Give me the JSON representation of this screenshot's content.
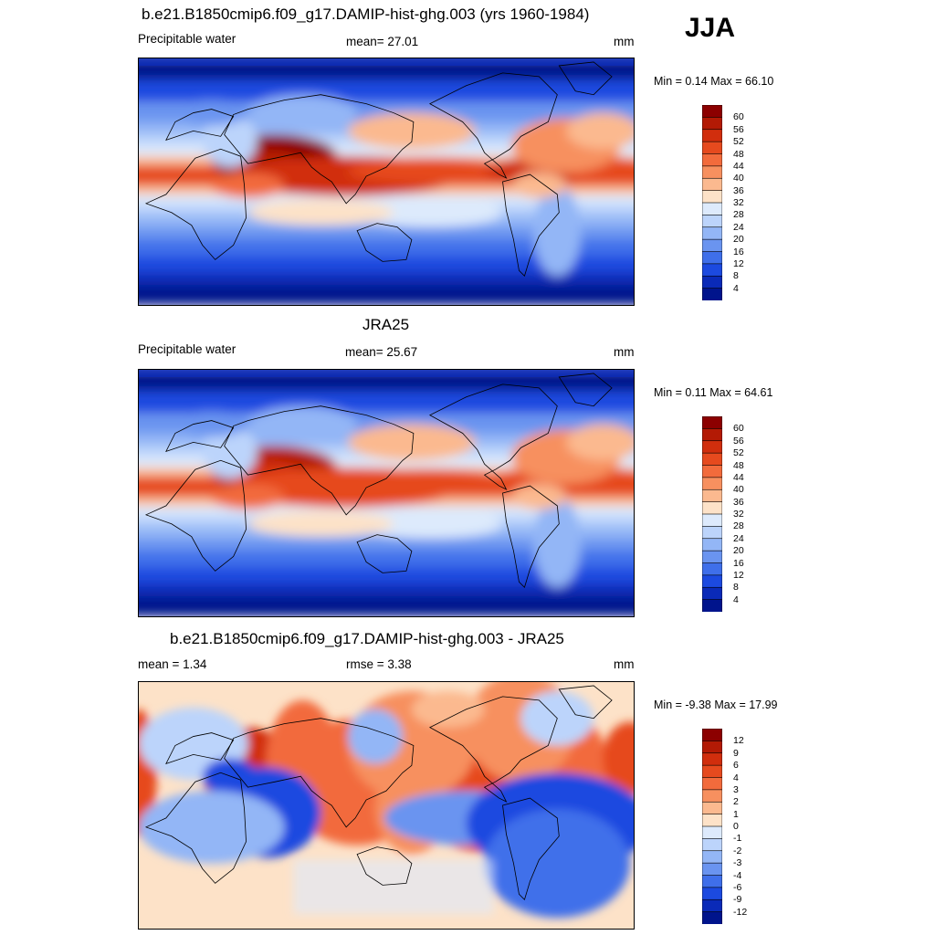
{
  "season": "JJA",
  "panels": [
    {
      "title": "b.e21.B1850cmip6.f09_g17.DAMIP-hist-ghg.003 (yrs 1960-1984)",
      "left_label": "Precipitable water",
      "center_label": "mean=  27.01",
      "units": "mm",
      "minmax": "Min =   0.14 Max =  66.10",
      "kind": "field"
    },
    {
      "title": "JRA25",
      "left_label": "Precipitable water",
      "center_label": "mean=  25.67",
      "units": "mm",
      "minmax": "Min =   0.11 Max =  64.61",
      "kind": "field"
    },
    {
      "title": "b.e21.B1850cmip6.f09_g17.DAMIP-hist-ghg.003 - JRA25",
      "left_label": "mean =   1.34",
      "center_label": "rmse =   3.38",
      "units": "mm",
      "minmax": "Min =  -9.38 Max =  17.99",
      "kind": "diff"
    }
  ],
  "colorbars": {
    "field": {
      "labels": [
        "60",
        "56",
        "52",
        "48",
        "44",
        "40",
        "36",
        "32",
        "28",
        "24",
        "20",
        "16",
        "12",
        "8",
        "4"
      ],
      "colors": [
        "#8c0000",
        "#b31a05",
        "#d12e0d",
        "#e64a1e",
        "#f26b3c",
        "#f7905f",
        "#fbb98f",
        "#fde2c8",
        "#ddeafc",
        "#bcd4fb",
        "#93b6f6",
        "#6a94f0",
        "#3f6fea",
        "#1c4ae0",
        "#0a2ab8",
        "#00148c"
      ]
    },
    "diff": {
      "labels": [
        "12",
        "9",
        "6",
        "4",
        "3",
        "2",
        "1",
        "0",
        "-1",
        "-2",
        "-3",
        "-4",
        "-6",
        "-9",
        "-12"
      ],
      "colors": [
        "#8c0000",
        "#b31a05",
        "#d12e0d",
        "#e64a1e",
        "#f26b3c",
        "#f7905f",
        "#fbb98f",
        "#fde2c8",
        "#ddeafc",
        "#bcd4fb",
        "#93b6f6",
        "#6a94f0",
        "#3f6fea",
        "#1c4ae0",
        "#0a2ab8",
        "#00148c"
      ]
    }
  }
}
